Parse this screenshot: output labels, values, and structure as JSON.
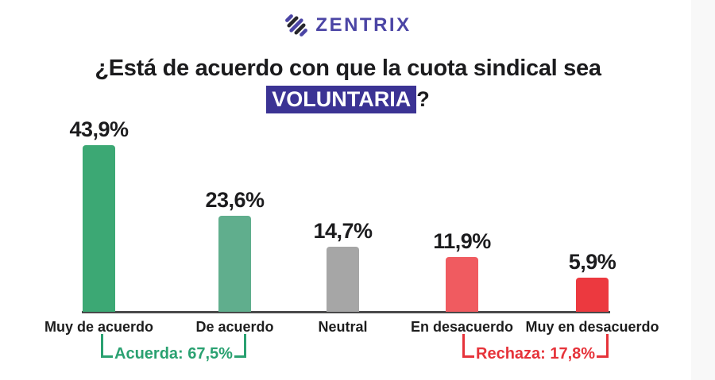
{
  "brand": {
    "name": "ZENTRIX",
    "logo_color": "#4b45a5"
  },
  "title": {
    "line1": "¿Está de acuerdo con que la cuota sindical sea",
    "highlight": "VOLUNTARIA",
    "suffix": "?",
    "highlight_bg": "#3b3394"
  },
  "chart_data": {
    "type": "bar",
    "title": "¿Está de acuerdo con que la cuota sindical sea VOLUNTARIA?",
    "categories": [
      "Muy de acuerdo",
      "De acuerdo",
      "Neutral",
      "En desacuerdo",
      "Muy en desacuerdo"
    ],
    "values": [
      43.9,
      23.6,
      14.7,
      11.9,
      5.9
    ],
    "value_labels": [
      "43,9%",
      "23,6%",
      "14,7%",
      "11,9%",
      "5,9%"
    ],
    "bar_colors": [
      "#3ca874",
      "#60ae8d",
      "#a6a6a6",
      "#f05b60",
      "#ec393f"
    ],
    "xlabel": "",
    "ylabel": "",
    "ylim": [
      0,
      50
    ],
    "grid": false,
    "legend": "none",
    "annotations": [
      {
        "label": "Acuerda: 67,5%",
        "value": 67.5,
        "color": "#2aa171",
        "spans": [
          "Muy de acuerdo",
          "De acuerdo"
        ]
      },
      {
        "label": "Rechaza: 17,8%",
        "value": 17.8,
        "color": "#e6333a",
        "spans": [
          "En desacuerdo",
          "Muy en desacuerdo"
        ]
      }
    ]
  }
}
